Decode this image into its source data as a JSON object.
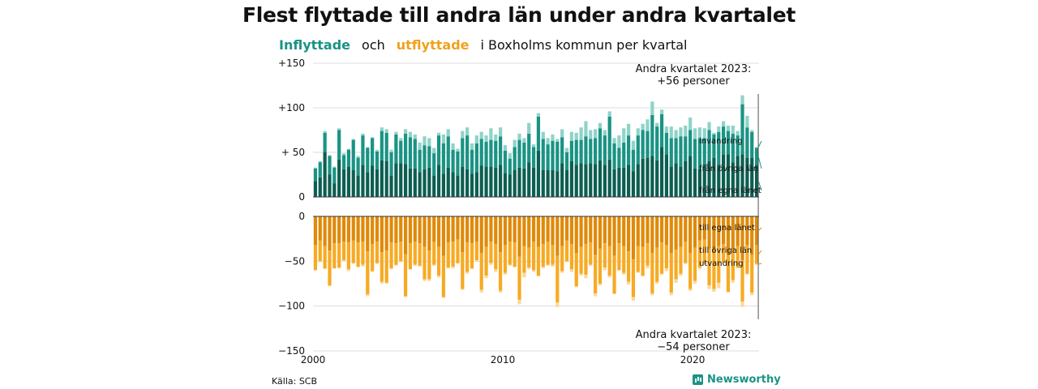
{
  "title": "Flest flyttade till andra län under andra kvartalet",
  "subtitle": {
    "in_label": "Inflyttade",
    "and": "och",
    "out_label": "utflyttade",
    "rest": "i Boxholms  kommun  per  kvartal"
  },
  "source": "Källa: SCB",
  "brand": "Newsworthy",
  "colors": {
    "in_own_county": "#0d5e51",
    "in_other_counties": "#1a9384",
    "immigration": "#8fd3c8",
    "out_own_county": "#df8a0a",
    "out_other_counties": "#f7aa23",
    "emigration": "#fbd89b",
    "grid": "#dddddd"
  },
  "chart_data": {
    "type": "bar",
    "stacked": true,
    "x_range": [
      2000,
      2023.5
    ],
    "x_ticks": [
      "2000",
      "2010",
      "2020"
    ],
    "top_panel": {
      "y_range": [
        0,
        150
      ],
      "y_ticks": [
        "0",
        "+ 50",
        "+100",
        "+150"
      ],
      "series_labels": [
        "invandring",
        "från övriga län",
        "från egna länet"
      ]
    },
    "bottom_panel": {
      "y_range": [
        -150,
        0
      ],
      "y_ticks": [
        "0",
        "−50",
        "−100",
        "−150"
      ],
      "series_labels": [
        "till egna länet",
        "till övriga län",
        "utvandring"
      ]
    },
    "annotations": {
      "top": [
        "Andra kvartalet 2023:",
        "+56 personer"
      ],
      "bottom": [
        "Andra kvartalet 2023:",
        "−54 personer"
      ]
    },
    "quarters": [
      {
        "q": "2000Q1",
        "in": [
          18,
          14,
          1
        ],
        "out": [
          32,
          28,
          0
        ]
      },
      {
        "q": "2000Q2",
        "in": [
          22,
          17,
          1
        ],
        "out": [
          27,
          23,
          1
        ]
      },
      {
        "q": "2000Q3",
        "in": [
          50,
          22,
          2
        ],
        "out": [
          33,
          25,
          1
        ]
      },
      {
        "q": "2000Q4",
        "in": [
          25,
          21,
          1
        ],
        "out": [
          38,
          39,
          1
        ]
      },
      {
        "q": "2001Q1",
        "in": [
          15,
          18,
          1
        ],
        "out": [
          30,
          28,
          0
        ]
      },
      {
        "q": "2001Q2",
        "in": [
          42,
          33,
          2
        ],
        "out": [
          30,
          27,
          1
        ]
      },
      {
        "q": "2001Q3",
        "in": [
          31,
          16,
          2
        ],
        "out": [
          28,
          21,
          1
        ]
      },
      {
        "q": "2001Q4",
        "in": [
          34,
          19,
          1
        ],
        "out": [
          29,
          30,
          2
        ]
      },
      {
        "q": "2002Q1",
        "in": [
          30,
          34,
          1
        ],
        "out": [
          27,
          25,
          1
        ]
      },
      {
        "q": "2002Q2",
        "in": [
          24,
          20,
          2
        ],
        "out": [
          29,
          27,
          1
        ]
      },
      {
        "q": "2002Q3",
        "in": [
          36,
          33,
          2
        ],
        "out": [
          28,
          26,
          2
        ]
      },
      {
        "q": "2002Q4",
        "in": [
          28,
          27,
          1
        ],
        "out": [
          39,
          48,
          2
        ]
      },
      {
        "q": "2003Q1",
        "in": [
          35,
          31,
          1
        ],
        "out": [
          31,
          30,
          1
        ]
      },
      {
        "q": "2003Q2",
        "in": [
          31,
          20,
          2
        ],
        "out": [
          28,
          24,
          1
        ]
      },
      {
        "q": "2003Q3",
        "in": [
          41,
          33,
          4
        ],
        "out": [
          40,
          33,
          2
        ]
      },
      {
        "q": "2003Q4",
        "in": [
          40,
          32,
          4
        ],
        "out": [
          38,
          36,
          1
        ]
      },
      {
        "q": "2004Q1",
        "in": [
          24,
          26,
          3
        ],
        "out": [
          29,
          29,
          1
        ]
      },
      {
        "q": "2004Q2",
        "in": [
          38,
          32,
          3
        ],
        "out": [
          30,
          24,
          1
        ]
      },
      {
        "q": "2004Q3",
        "in": [
          38,
          25,
          3
        ],
        "out": [
          28,
          22,
          1
        ]
      },
      {
        "q": "2004Q4",
        "in": [
          37,
          34,
          5
        ],
        "out": [
          42,
          47,
          1
        ]
      },
      {
        "q": "2005Q1",
        "in": [
          32,
          35,
          6
        ],
        "out": [
          30,
          29,
          0
        ]
      },
      {
        "q": "2005Q2",
        "in": [
          32,
          33,
          5
        ],
        "out": [
          28,
          26,
          1
        ]
      },
      {
        "q": "2005Q3",
        "in": [
          28,
          25,
          8
        ],
        "out": [
          30,
          25,
          1
        ]
      },
      {
        "q": "2005Q4",
        "in": [
          31,
          27,
          10
        ],
        "out": [
          34,
          36,
          2
        ]
      },
      {
        "q": "2006Q1",
        "in": [
          33,
          24,
          9
        ],
        "out": [
          38,
          32,
          2
        ]
      },
      {
        "q": "2006Q2",
        "in": [
          24,
          25,
          6
        ],
        "out": [
          28,
          26,
          1
        ]
      },
      {
        "q": "2006Q3",
        "in": [
          36,
          33,
          3
        ],
        "out": [
          34,
          32,
          2
        ]
      },
      {
        "q": "2006Q4",
        "in": [
          26,
          34,
          10
        ],
        "out": [
          44,
          46,
          1
        ]
      },
      {
        "q": "2007Q1",
        "in": [
          33,
          35,
          8
        ],
        "out": [
          29,
          28,
          1
        ]
      },
      {
        "q": "2007Q2",
        "in": [
          28,
          25,
          7
        ],
        "out": [
          28,
          28,
          2
        ]
      },
      {
        "q": "2007Q3",
        "in": [
          24,
          27,
          3
        ],
        "out": [
          26,
          26,
          1
        ]
      },
      {
        "q": "2007Q4",
        "in": [
          34,
          32,
          8
        ],
        "out": [
          40,
          41,
          1
        ]
      },
      {
        "q": "2008Q1",
        "in": [
          31,
          38,
          9
        ],
        "out": [
          29,
          33,
          2
        ]
      },
      {
        "q": "2008Q2",
        "in": [
          26,
          27,
          7
        ],
        "out": [
          30,
          28,
          1
        ]
      },
      {
        "q": "2008Q3",
        "in": [
          28,
          32,
          9
        ],
        "out": [
          28,
          21,
          1
        ]
      },
      {
        "q": "2008Q4",
        "in": [
          35,
          30,
          8
        ],
        "out": [
          41,
          41,
          3
        ]
      },
      {
        "q": "2009Q1",
        "in": [
          34,
          28,
          7
        ],
        "out": [
          34,
          32,
          3
        ]
      },
      {
        "q": "2009Q2",
        "in": [
          34,
          30,
          13
        ],
        "out": [
          28,
          24,
          2
        ]
      },
      {
        "q": "2009Q3",
        "in": [
          33,
          30,
          7
        ],
        "out": [
          31,
          28,
          3
        ]
      },
      {
        "q": "2009Q4",
        "in": [
          36,
          32,
          10
        ],
        "out": [
          40,
          43,
          2
        ]
      },
      {
        "q": "2010Q1",
        "in": [
          27,
          25,
          6
        ],
        "out": [
          32,
          31,
          2
        ]
      },
      {
        "q": "2010Q2",
        "in": [
          25,
          18,
          6
        ],
        "out": [
          28,
          26,
          1
        ]
      },
      {
        "q": "2010Q3",
        "in": [
          30,
          26,
          8
        ],
        "out": [
          29,
          27,
          1
        ]
      },
      {
        "q": "2010Q4",
        "in": [
          33,
          31,
          7
        ],
        "out": [
          45,
          48,
          5
        ]
      },
      {
        "q": "2011Q1",
        "in": [
          32,
          29,
          5
        ],
        "out": [
          33,
          30,
          5
        ]
      },
      {
        "q": "2011Q2",
        "in": [
          39,
          32,
          12
        ],
        "out": [
          35,
          22,
          2
        ]
      },
      {
        "q": "2011Q3",
        "in": [
          33,
          23,
          3
        ],
        "out": [
          28,
          32,
          2
        ]
      },
      {
        "q": "2011Q4",
        "in": [
          52,
          38,
          4
        ],
        "out": [
          34,
          32,
          1
        ]
      },
      {
        "q": "2012Q1",
        "in": [
          30,
          35,
          8
        ],
        "out": [
          31,
          25,
          2
        ]
      },
      {
        "q": "2012Q2",
        "in": [
          30,
          29,
          7
        ],
        "out": [
          28,
          26,
          1
        ]
      },
      {
        "q": "2012Q3",
        "in": [
          30,
          33,
          7
        ],
        "out": [
          32,
          22,
          2
        ]
      },
      {
        "q": "2012Q4",
        "in": [
          29,
          33,
          3
        ],
        "out": [
          44,
          52,
          5
        ]
      },
      {
        "q": "2013Q1",
        "in": [
          38,
          29,
          9
        ],
        "out": [
          33,
          28,
          2
        ]
      },
      {
        "q": "2013Q2",
        "in": [
          30,
          20,
          5
        ],
        "out": [
          27,
          23,
          1
        ]
      },
      {
        "q": "2013Q3",
        "in": [
          40,
          23,
          10
        ],
        "out": [
          31,
          28,
          3
        ]
      },
      {
        "q": "2013Q4",
        "in": [
          36,
          28,
          8
        ],
        "out": [
          41,
          37,
          1
        ]
      },
      {
        "q": "2014Q1",
        "in": [
          38,
          26,
          14
        ],
        "out": [
          34,
          30,
          2
        ]
      },
      {
        "q": "2014Q2",
        "in": [
          37,
          31,
          17
        ],
        "out": [
          31,
          34,
          4
        ]
      },
      {
        "q": "2014Q3",
        "in": [
          38,
          27,
          10
        ],
        "out": [
          29,
          25,
          1
        ]
      },
      {
        "q": "2014Q4",
        "in": [
          37,
          29,
          10
        ],
        "out": [
          43,
          43,
          3
        ]
      },
      {
        "q": "2015Q1",
        "in": [
          41,
          36,
          6
        ],
        "out": [
          36,
          39,
          2
        ]
      },
      {
        "q": "2015Q2",
        "in": [
          36,
          33,
          6
        ],
        "out": [
          30,
          27,
          3
        ]
      },
      {
        "q": "2015Q3",
        "in": [
          42,
          48,
          6
        ],
        "out": [
          33,
          33,
          2
        ]
      },
      {
        "q": "2015Q4",
        "in": [
          31,
          29,
          6
        ],
        "out": [
          44,
          42,
          1
        ]
      },
      {
        "q": "2016Q1",
        "in": [
          33,
          22,
          14
        ],
        "out": [
          30,
          30,
          0
        ]
      },
      {
        "q": "2016Q2",
        "in": [
          33,
          28,
          16
        ],
        "out": [
          33,
          30,
          2
        ]
      },
      {
        "q": "2016Q3",
        "in": [
          36,
          33,
          13
        ],
        "out": [
          39,
          34,
          3
        ]
      },
      {
        "q": "2016Q4",
        "in": [
          29,
          24,
          10
        ],
        "out": [
          48,
          42,
          4
        ]
      },
      {
        "q": "2017Q1",
        "in": [
          37,
          32,
          8
        ],
        "out": [
          33,
          29,
          1
        ]
      },
      {
        "q": "2017Q2",
        "in": [
          43,
          32,
          7
        ],
        "out": [
          34,
          32,
          1
        ]
      },
      {
        "q": "2017Q3",
        "in": [
          44,
          30,
          13
        ],
        "out": [
          30,
          25,
          3
        ]
      },
      {
        "q": "2017Q4",
        "in": [
          46,
          46,
          15
        ],
        "out": [
          41,
          45,
          2
        ]
      },
      {
        "q": "2018Q1",
        "in": [
          41,
          38,
          4
        ],
        "out": [
          35,
          38,
          2
        ]
      },
      {
        "q": "2018Q2",
        "in": [
          56,
          37,
          5
        ],
        "out": [
          29,
          35,
          1
        ]
      },
      {
        "q": "2018Q3",
        "in": [
          48,
          24,
          7
        ],
        "out": [
          32,
          26,
          3
        ]
      },
      {
        "q": "2018Q4",
        "in": [
          34,
          32,
          13
        ],
        "out": [
          41,
          44,
          3
        ]
      },
      {
        "q": "2019Q1",
        "in": [
          38,
          28,
          9
        ],
        "out": [
          37,
          33,
          4
        ]
      },
      {
        "q": "2019Q2",
        "in": [
          34,
          34,
          10
        ],
        "out": [
          34,
          30,
          2
        ]
      },
      {
        "q": "2019Q3",
        "in": [
          40,
          28,
          12
        ],
        "out": [
          28,
          24,
          1
        ]
      },
      {
        "q": "2019Q4",
        "in": [
          46,
          29,
          14
        ],
        "out": [
          41,
          40,
          2
        ]
      },
      {
        "q": "2020Q1",
        "in": [
          32,
          33,
          12
        ],
        "out": [
          35,
          37,
          3
        ]
      },
      {
        "q": "2020Q2",
        "in": [
          31,
          35,
          12
        ],
        "out": [
          27,
          30,
          2
        ]
      },
      {
        "q": "2020Q3",
        "in": [
          37,
          29,
          11
        ],
        "out": [
          26,
          27,
          1
        ]
      },
      {
        "q": "2020Q4",
        "in": [
          40,
          35,
          9
        ],
        "out": [
          36,
          41,
          4
        ]
      },
      {
        "q": "2021Q1",
        "in": [
          44,
          26,
          2
        ],
        "out": [
          41,
          40,
          3
        ]
      },
      {
        "q": "2021Q2",
        "in": [
          36,
          37,
          6
        ],
        "out": [
          33,
          41,
          6
        ]
      },
      {
        "q": "2021Q3",
        "in": [
          48,
          31,
          6
        ],
        "out": [
          31,
          20,
          1
        ]
      },
      {
        "q": "2021Q4",
        "in": [
          48,
          26,
          6
        ],
        "out": [
          43,
          41,
          1
        ]
      },
      {
        "q": "2022Q1",
        "in": [
          39,
          32,
          9
        ],
        "out": [
          37,
          34,
          3
        ]
      },
      {
        "q": "2022Q2",
        "in": [
          46,
          23,
          5
        ],
        "out": [
          33,
          24,
          1
        ]
      },
      {
        "q": "2022Q3",
        "in": [
          48,
          56,
          10
        ],
        "out": [
          49,
          46,
          6
        ]
      },
      {
        "q": "2022Q4",
        "in": [
          44,
          34,
          13
        ],
        "out": [
          32,
          32,
          1
        ]
      },
      {
        "q": "2023Q1",
        "in": [
          44,
          29,
          2
        ],
        "out": [
          43,
          42,
          3
        ]
      },
      {
        "q": "2023Q2",
        "in": [
          36,
          19,
          1
        ],
        "out": [
          32,
          21,
          1
        ]
      }
    ]
  }
}
